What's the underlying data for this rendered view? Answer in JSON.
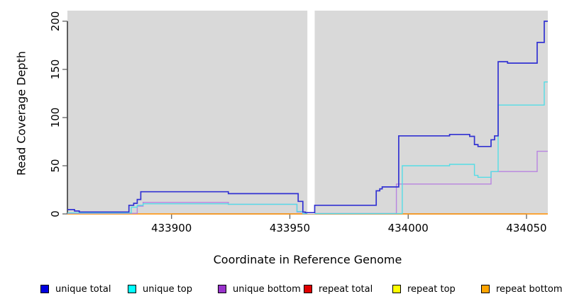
{
  "chart_data": {
    "type": "line",
    "title": "",
    "xlabel": "Coordinate in Reference Genome",
    "ylabel": "Read Coverage Depth",
    "xlim": [
      433856,
      434059
    ],
    "ylim": [
      0,
      211
    ],
    "x_ticks": [
      433900,
      433950,
      434000,
      434050
    ],
    "y_ticks": [
      0,
      50,
      100,
      150,
      200
    ],
    "grid": false,
    "legend_position": "bottom",
    "plot_bg": "#d9d9d9",
    "gap_region": {
      "x0": 433957.4,
      "x1": 433960.5,
      "color": "#ffffff"
    },
    "legend": [
      {
        "name": "unique-total",
        "label": "unique total",
        "color": "#0000e0"
      },
      {
        "name": "unique-top",
        "label": "unique top",
        "color": "#00ffff"
      },
      {
        "name": "unique-bottom",
        "label": "unique bottom",
        "color": "#9932cc"
      },
      {
        "name": "repeat-total",
        "label": "repeat total",
        "color": "#e00000"
      },
      {
        "name": "repeat-top",
        "label": "repeat top",
        "color": "#ffff00"
      },
      {
        "name": "repeat-bottom",
        "label": "repeat bottom",
        "color": "#ffa500"
      }
    ],
    "series": [
      {
        "name": "repeat top",
        "color": "#ffff00",
        "width": 1.2,
        "above_gap": false,
        "points": [
          [
            433856,
            0
          ],
          [
            434059,
            0
          ]
        ]
      },
      {
        "name": "repeat total",
        "color": "#e00000",
        "width": 1.2,
        "above_gap": false,
        "points": [
          [
            433856,
            0
          ],
          [
            434059,
            0
          ]
        ]
      },
      {
        "name": "repeat bottom",
        "color": "#ffa020",
        "width": 1.6,
        "above_gap": false,
        "points": [
          [
            433856,
            0
          ],
          [
            434059,
            0
          ]
        ]
      },
      {
        "name": "unique bottom",
        "color": "#b884e0",
        "width": 1.4,
        "above_gap": false,
        "points": [
          [
            433856,
            0.6
          ],
          [
            433885.5,
            8
          ],
          [
            433888,
            12
          ],
          [
            433924,
            10
          ],
          [
            433953,
            2
          ],
          [
            433955.5,
            0.4
          ],
          [
            433995,
            31
          ],
          [
            434035,
            44
          ],
          [
            434054.5,
            65
          ],
          [
            434059,
            65
          ]
        ]
      },
      {
        "name": "unique top",
        "color": "#55dde6",
        "width": 1.4,
        "above_gap": false,
        "points": [
          [
            433856,
            1
          ],
          [
            433883,
            7
          ],
          [
            433885.5,
            9
          ],
          [
            433888,
            10.5
          ],
          [
            433924,
            10
          ],
          [
            433953,
            2.5
          ],
          [
            433955.5,
            0.3
          ],
          [
            433997.5,
            50
          ],
          [
            434017.5,
            51.5
          ],
          [
            434028,
            40
          ],
          [
            434029.5,
            38
          ],
          [
            434035,
            44
          ],
          [
            434038,
            113
          ],
          [
            434057.5,
            137
          ],
          [
            434059,
            137
          ]
        ]
      },
      {
        "name": "unique total",
        "color": "#3232d2",
        "width": 1.7,
        "above_gap": true,
        "points": [
          [
            433856,
            4.5
          ],
          [
            433859,
            3
          ],
          [
            433861,
            2
          ],
          [
            433882,
            9
          ],
          [
            433884,
            11
          ],
          [
            433885.5,
            15
          ],
          [
            433887,
            23
          ],
          [
            433924,
            21
          ],
          [
            433953.5,
            13
          ],
          [
            433955.5,
            2
          ],
          [
            433956.5,
            1.3
          ],
          [
            433960.5,
            9
          ],
          [
            433986.5,
            24
          ],
          [
            433988,
            26
          ],
          [
            433989,
            28
          ],
          [
            433996,
            81
          ],
          [
            434017.5,
            82.5
          ],
          [
            434026,
            80.5
          ],
          [
            434028,
            72
          ],
          [
            434029.5,
            70
          ],
          [
            434035,
            77
          ],
          [
            434036.5,
            81
          ],
          [
            434038,
            158
          ],
          [
            434042,
            156.5
          ],
          [
            434054.5,
            178
          ],
          [
            434057.5,
            200
          ],
          [
            434059,
            200
          ]
        ]
      }
    ]
  }
}
